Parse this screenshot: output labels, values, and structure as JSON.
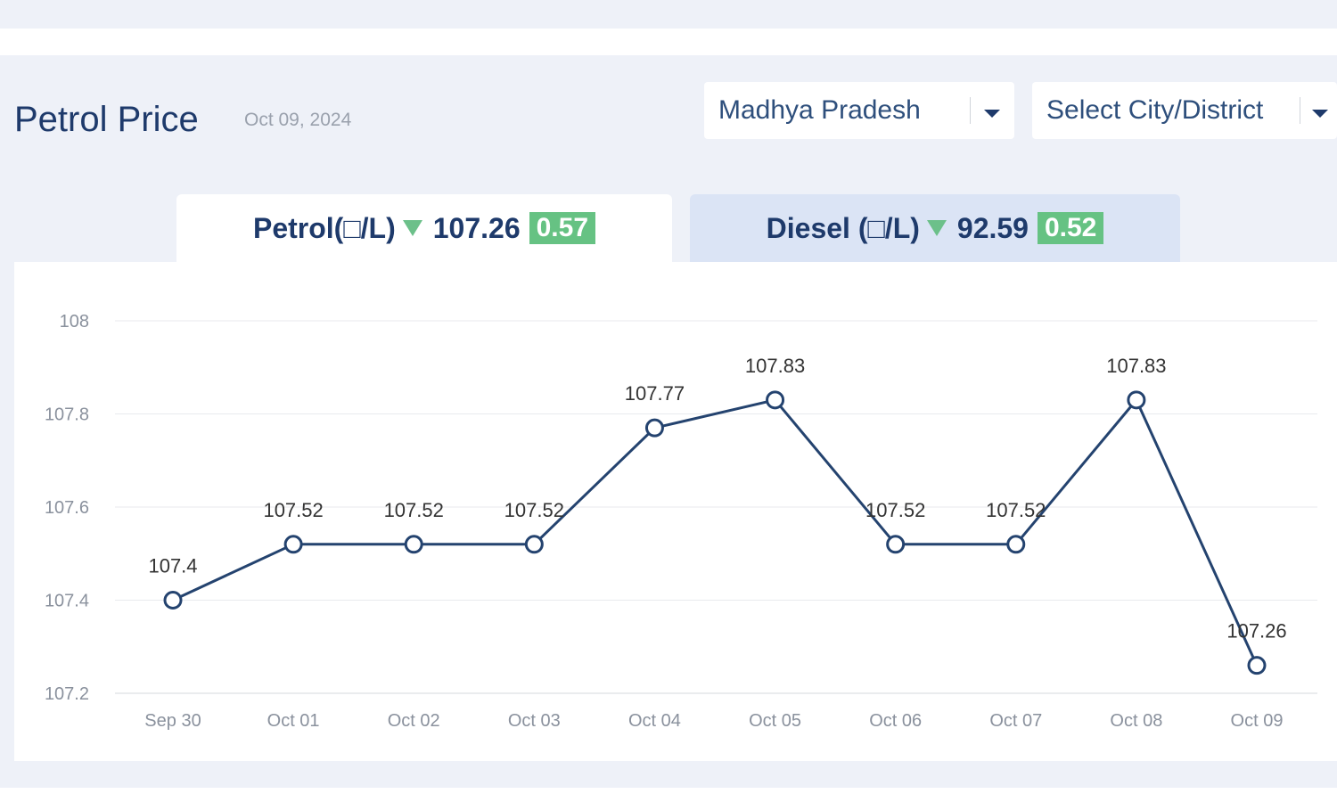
{
  "header": {
    "title": "Petrol Price",
    "date": "Oct 09, 2024"
  },
  "filters": {
    "state": "Madhya Pradesh",
    "city": "Select City/District"
  },
  "tabs": {
    "petrol": {
      "label": "Petrol(□/L)",
      "price": "107.26",
      "change": "0.57"
    },
    "diesel": {
      "label": "Diesel (□/L)",
      "price": "92.59",
      "change": "0.52"
    }
  },
  "colors": {
    "accent": "#1e3a6b",
    "line": "#24436f",
    "badge": "#66c283",
    "down_arrow": "#6cc08a"
  },
  "chart_data": {
    "type": "line",
    "categories": [
      "Sep 30",
      "Oct 01",
      "Oct 02",
      "Oct 03",
      "Oct 04",
      "Oct 05",
      "Oct 06",
      "Oct 07",
      "Oct 08",
      "Oct 09"
    ],
    "values": [
      107.4,
      107.52,
      107.52,
      107.52,
      107.77,
      107.83,
      107.52,
      107.52,
      107.83,
      107.26
    ],
    "value_labels": [
      "107.4",
      "107.52",
      "107.52",
      "107.52",
      "107.77",
      "107.83",
      "107.52",
      "107.52",
      "107.83",
      "107.26"
    ],
    "y_ticks": [
      "108",
      "107.8",
      "107.6",
      "107.4",
      "107.2"
    ],
    "ylim": [
      107.2,
      108
    ],
    "grid": true,
    "title": "",
    "xlabel": "",
    "ylabel": ""
  }
}
